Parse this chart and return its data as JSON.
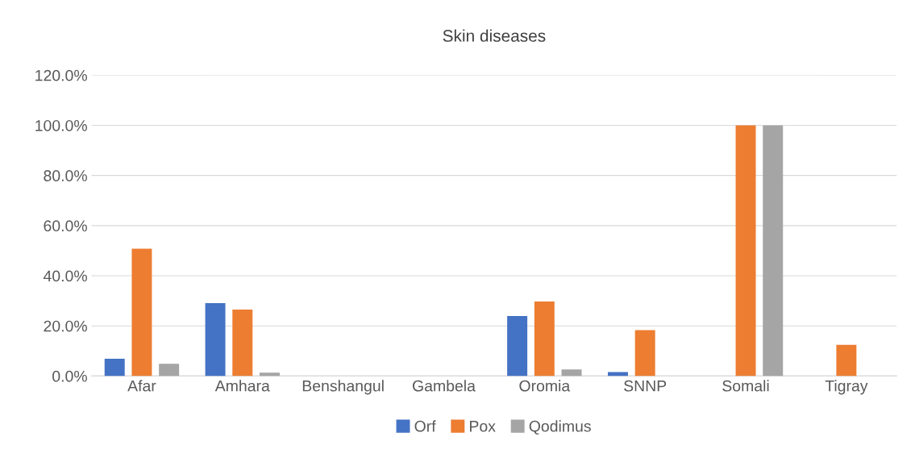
{
  "chart_data": {
    "type": "bar",
    "title": "Skin diseases",
    "categories": [
      "Afar",
      "Amhara",
      "Benshangul",
      "Gambela",
      "Oromia",
      "SNNP",
      "Somali",
      "Tigray"
    ],
    "series": [
      {
        "name": "Orf",
        "color": "#4472c4",
        "values": [
          6.9,
          29.1,
          null,
          null,
          23.9,
          1.6,
          null,
          null
        ]
      },
      {
        "name": "Pox",
        "color": "#ed7d31",
        "values": [
          50.8,
          26.5,
          null,
          null,
          29.7,
          18.3,
          100,
          12.4
        ]
      },
      {
        "name": "Qodimus",
        "color": "#a5a5a5",
        "values": [
          4.9,
          1.3,
          null,
          null,
          2.6,
          null,
          100,
          null
        ]
      }
    ],
    "ylim": [
      0,
      120
    ],
    "yticks": [
      {
        "value": 0,
        "label": "0.0%"
      },
      {
        "value": 20,
        "label": "20.0%"
      },
      {
        "value": 40,
        "label": "40.0%"
      },
      {
        "value": 60,
        "label": "60.0%"
      },
      {
        "value": 80,
        "label": "80.0%"
      },
      {
        "value": 100,
        "label": "100.0%"
      },
      {
        "value": 120,
        "label": "120.0%"
      }
    ],
    "grid": "y",
    "legend": "bottom"
  }
}
